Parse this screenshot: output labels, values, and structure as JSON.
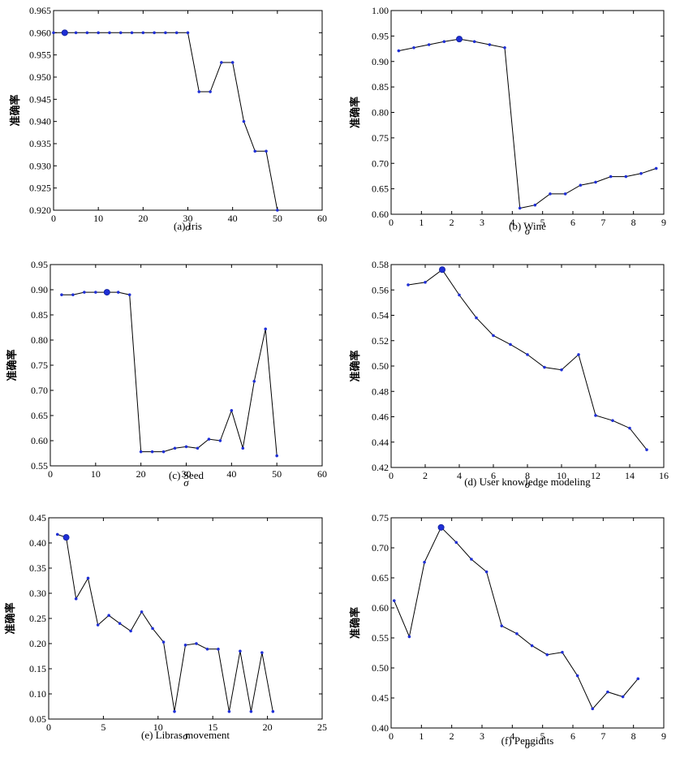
{
  "chart_data": [
    {
      "type": "line",
      "caption": "(a) Iris",
      "xlabel": "σ",
      "ylabel": "准确率",
      "xlim": [
        0,
        60
      ],
      "ylim": [
        0.92,
        0.965
      ],
      "xticks": [
        "0",
        "10",
        "20",
        "30",
        "40",
        "50",
        "60"
      ],
      "yticks": [
        "0.920",
        "0.925",
        "0.930",
        "0.935",
        "0.940",
        "0.945",
        "0.950",
        "0.955",
        "0.960",
        "0.965"
      ],
      "x": [
        0,
        2.5,
        5,
        7.5,
        10,
        12.5,
        15,
        17.5,
        20,
        22.5,
        25,
        27.5,
        30,
        32.5,
        35,
        37.5,
        40,
        42.5,
        45,
        47.5,
        50
      ],
      "y": [
        0.96,
        0.96,
        0.96,
        0.96,
        0.96,
        0.96,
        0.96,
        0.96,
        0.96,
        0.96,
        0.96,
        0.96,
        0.96,
        0.9467,
        0.9467,
        0.9533,
        0.9533,
        0.94,
        0.9333,
        0.9333,
        0.92
      ],
      "highlight": {
        "x": 2.5,
        "y": 0.96
      },
      "grid": false,
      "colors": {
        "point": "#1f2fd6",
        "line": "#000000"
      }
    },
    {
      "type": "line",
      "caption": "(b) Wine",
      "xlabel": "σ",
      "ylabel": "准确率",
      "xlim": [
        0,
        9
      ],
      "ylim": [
        0.6,
        1.0
      ],
      "xticks": [
        "0",
        "1",
        "2",
        "3",
        "4",
        "5",
        "6",
        "7",
        "8",
        "9"
      ],
      "yticks": [
        "0.60",
        "0.65",
        "0.70",
        "0.75",
        "0.80",
        "0.85",
        "0.90",
        "0.95",
        "1.00"
      ],
      "x": [
        0.25,
        0.75,
        1.25,
        1.75,
        2.25,
        2.75,
        3.25,
        3.75,
        4.25,
        4.75,
        5.25,
        5.75,
        6.25,
        6.75,
        7.25,
        7.75,
        8.25,
        8.75
      ],
      "y": [
        0.921,
        0.927,
        0.933,
        0.939,
        0.944,
        0.939,
        0.933,
        0.927,
        0.612,
        0.618,
        0.64,
        0.64,
        0.657,
        0.663,
        0.674,
        0.674,
        0.68,
        0.69
      ],
      "highlight": {
        "x": 2.25,
        "y": 0.944
      },
      "grid": false,
      "colors": {
        "point": "#1f2fd6",
        "line": "#000000"
      }
    },
    {
      "type": "line",
      "caption": "(c) Seed",
      "xlabel": "σ",
      "ylabel": "准确率",
      "xlim": [
        0,
        60
      ],
      "ylim": [
        0.55,
        0.95
      ],
      "xticks": [
        "0",
        "10",
        "20",
        "30",
        "40",
        "50",
        "60"
      ],
      "yticks": [
        "0.55",
        "0.60",
        "0.65",
        "0.70",
        "0.75",
        "0.80",
        "0.85",
        "0.90",
        "0.95"
      ],
      "x": [
        2.5,
        5,
        7.5,
        10,
        12.5,
        15,
        17.5,
        20,
        22.5,
        25,
        27.5,
        30,
        32.5,
        35,
        37.5,
        40,
        42.5,
        45,
        47.5,
        50
      ],
      "y": [
        0.89,
        0.89,
        0.895,
        0.895,
        0.895,
        0.895,
        0.89,
        0.578,
        0.578,
        0.578,
        0.585,
        0.588,
        0.585,
        0.603,
        0.6,
        0.66,
        0.585,
        0.718,
        0.822,
        0.57
      ],
      "highlight": {
        "x": 12.5,
        "y": 0.895
      },
      "grid": false,
      "colors": {
        "point": "#1f2fd6",
        "line": "#000000"
      }
    },
    {
      "type": "line",
      "caption": "(d) User knowledge modeling",
      "xlabel": "σ",
      "ylabel": "准确率",
      "xlim": [
        0,
        16
      ],
      "ylim": [
        0.42,
        0.58
      ],
      "xticks": [
        "0",
        "2",
        "4",
        "6",
        "8",
        "10",
        "12",
        "14",
        "16"
      ],
      "yticks": [
        "0.42",
        "0.44",
        "0.46",
        "0.48",
        "0.50",
        "0.52",
        "0.54",
        "0.56",
        "0.58"
      ],
      "x": [
        1,
        2,
        3,
        4,
        5,
        6,
        7,
        8,
        9,
        10,
        11,
        12,
        13,
        14,
        15
      ],
      "y": [
        0.564,
        0.566,
        0.576,
        0.556,
        0.538,
        0.524,
        0.517,
        0.509,
        0.499,
        0.497,
        0.509,
        0.461,
        0.457,
        0.451,
        0.434
      ],
      "highlight": {
        "x": 3,
        "y": 0.576
      },
      "grid": false,
      "colors": {
        "point": "#1f2fd6",
        "line": "#000000"
      }
    },
    {
      "type": "line",
      "caption": "(e) Libras movement",
      "xlabel": "σ",
      "ylabel": "准确率",
      "xlim": [
        0,
        25
      ],
      "ylim": [
        0.05,
        0.45
      ],
      "xticks": [
        "0",
        "5",
        "10",
        "15",
        "20",
        "25"
      ],
      "yticks": [
        "0.05",
        "0.10",
        "0.15",
        "0.20",
        "0.25",
        "0.30",
        "0.35",
        "0.40",
        "0.45"
      ],
      "x": [
        0.8,
        1.6,
        2.5,
        3.6,
        4.5,
        5.5,
        6.5,
        7.5,
        8.5,
        9.5,
        10.5,
        11.5,
        12.5,
        13.5,
        14.5,
        15.5,
        16.5,
        17.5,
        18.5,
        19.5,
        20.5
      ],
      "y": [
        0.417,
        0.411,
        0.289,
        0.33,
        0.237,
        0.256,
        0.24,
        0.225,
        0.263,
        0.23,
        0.203,
        0.065,
        0.197,
        0.2,
        0.189,
        0.189,
        0.065,
        0.185,
        0.065,
        0.182,
        0.065
      ],
      "highlight": {
        "x": 1.6,
        "y": 0.411
      },
      "grid": false,
      "colors": {
        "point": "#1f2fd6",
        "line": "#000000"
      }
    },
    {
      "type": "line",
      "caption": "(f) Pengidits",
      "xlabel": "σ",
      "ylabel": "准确率",
      "xlim": [
        0,
        9
      ],
      "ylim": [
        0.4,
        0.75
      ],
      "xticks": [
        "0",
        "1",
        "2",
        "3",
        "4",
        "5",
        "6",
        "7",
        "8",
        "9"
      ],
      "yticks": [
        "0.40",
        "0.45",
        "0.50",
        "0.55",
        "0.60",
        "0.65",
        "0.70",
        "0.75"
      ],
      "x": [
        0.1,
        0.6,
        1.1,
        1.65,
        2.15,
        2.65,
        3.15,
        3.65,
        4.15,
        4.65,
        5.15,
        5.65,
        6.15,
        6.65,
        7.15,
        7.65,
        8.15
      ],
      "y": [
        0.612,
        0.552,
        0.676,
        0.734,
        0.709,
        0.681,
        0.66,
        0.57,
        0.557,
        0.537,
        0.522,
        0.526,
        0.487,
        0.432,
        0.46,
        0.452,
        0.482
      ],
      "highlight": {
        "x": 1.65,
        "y": 0.734
      },
      "grid": false,
      "colors": {
        "point": "#1f2fd6",
        "line": "#000000"
      }
    }
  ]
}
